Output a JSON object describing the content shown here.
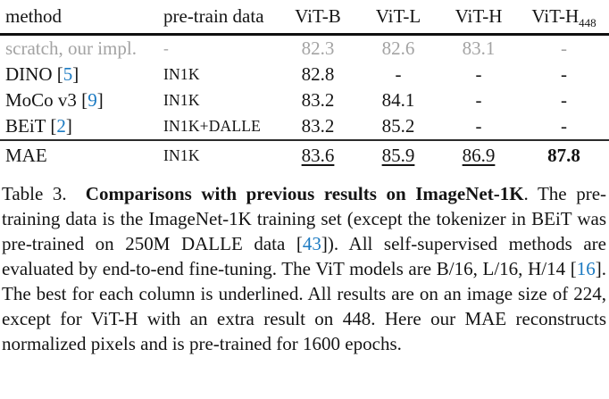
{
  "accent_colors": {
    "citation_blue": "#1b7ac2",
    "muted_gray": "#a3a3a3",
    "text_black": "#141414"
  },
  "table": {
    "headers": [
      {
        "text": "method"
      },
      {
        "text": "pre-train data"
      },
      {
        "text": "ViT-B"
      },
      {
        "text": "ViT-L"
      },
      {
        "text": "ViT-H"
      },
      {
        "text": "ViT-H",
        "sub": "448"
      }
    ],
    "rows": [
      {
        "method_pre": "scratch, our impl.",
        "cite": "",
        "method_post": "",
        "pretrain": "-",
        "vitb": "82.3",
        "vitl": "82.6",
        "vith": "83.1",
        "vith448": "-"
      },
      {
        "method_pre": "DINO [",
        "cite": "5",
        "method_post": "]",
        "pretrain": "IN1K",
        "vitb": "82.8",
        "vitl": "-",
        "vith": "-",
        "vith448": "-"
      },
      {
        "method_pre": "MoCo v3 [",
        "cite": "9",
        "method_post": "]",
        "pretrain": "IN1K",
        "vitb": "83.2",
        "vitl": "84.1",
        "vith": "-",
        "vith448": "-"
      },
      {
        "method_pre": "BEiT [",
        "cite": "2",
        "method_post": "]",
        "pretrain": "IN1K+DALLE",
        "vitb": "83.2",
        "vitl": "85.2",
        "vith": "-",
        "vith448": "-"
      },
      {
        "method_pre": "MAE",
        "cite": "",
        "method_post": "",
        "pretrain": "IN1K",
        "vitb": "83.6",
        "vitl": "85.9",
        "vith": "86.9",
        "vith448": "87.8"
      }
    ]
  },
  "caption": {
    "label": "Table 3.",
    "title_bold": "Comparisons with previous results on ImageNet-1K",
    "seg_after_title": ". The pre-training data is the ImageNet-1K training set (except the tokenizer in BEiT was pre-trained on 250M DALLE data [",
    "cite1": "43",
    "seg_mid": "]). All self-supervised methods are evaluated by end-to-end fine-tuning. The ViT models are B/16, L/16, H/14 [",
    "cite2": "16",
    "seg_end": "]. The best for each column is underlined. All results are on an image size of 224, except for ViT-H with an extra result on 448. Here our MAE reconstructs normalized pixels and is pre-trained for 1600 epochs."
  }
}
